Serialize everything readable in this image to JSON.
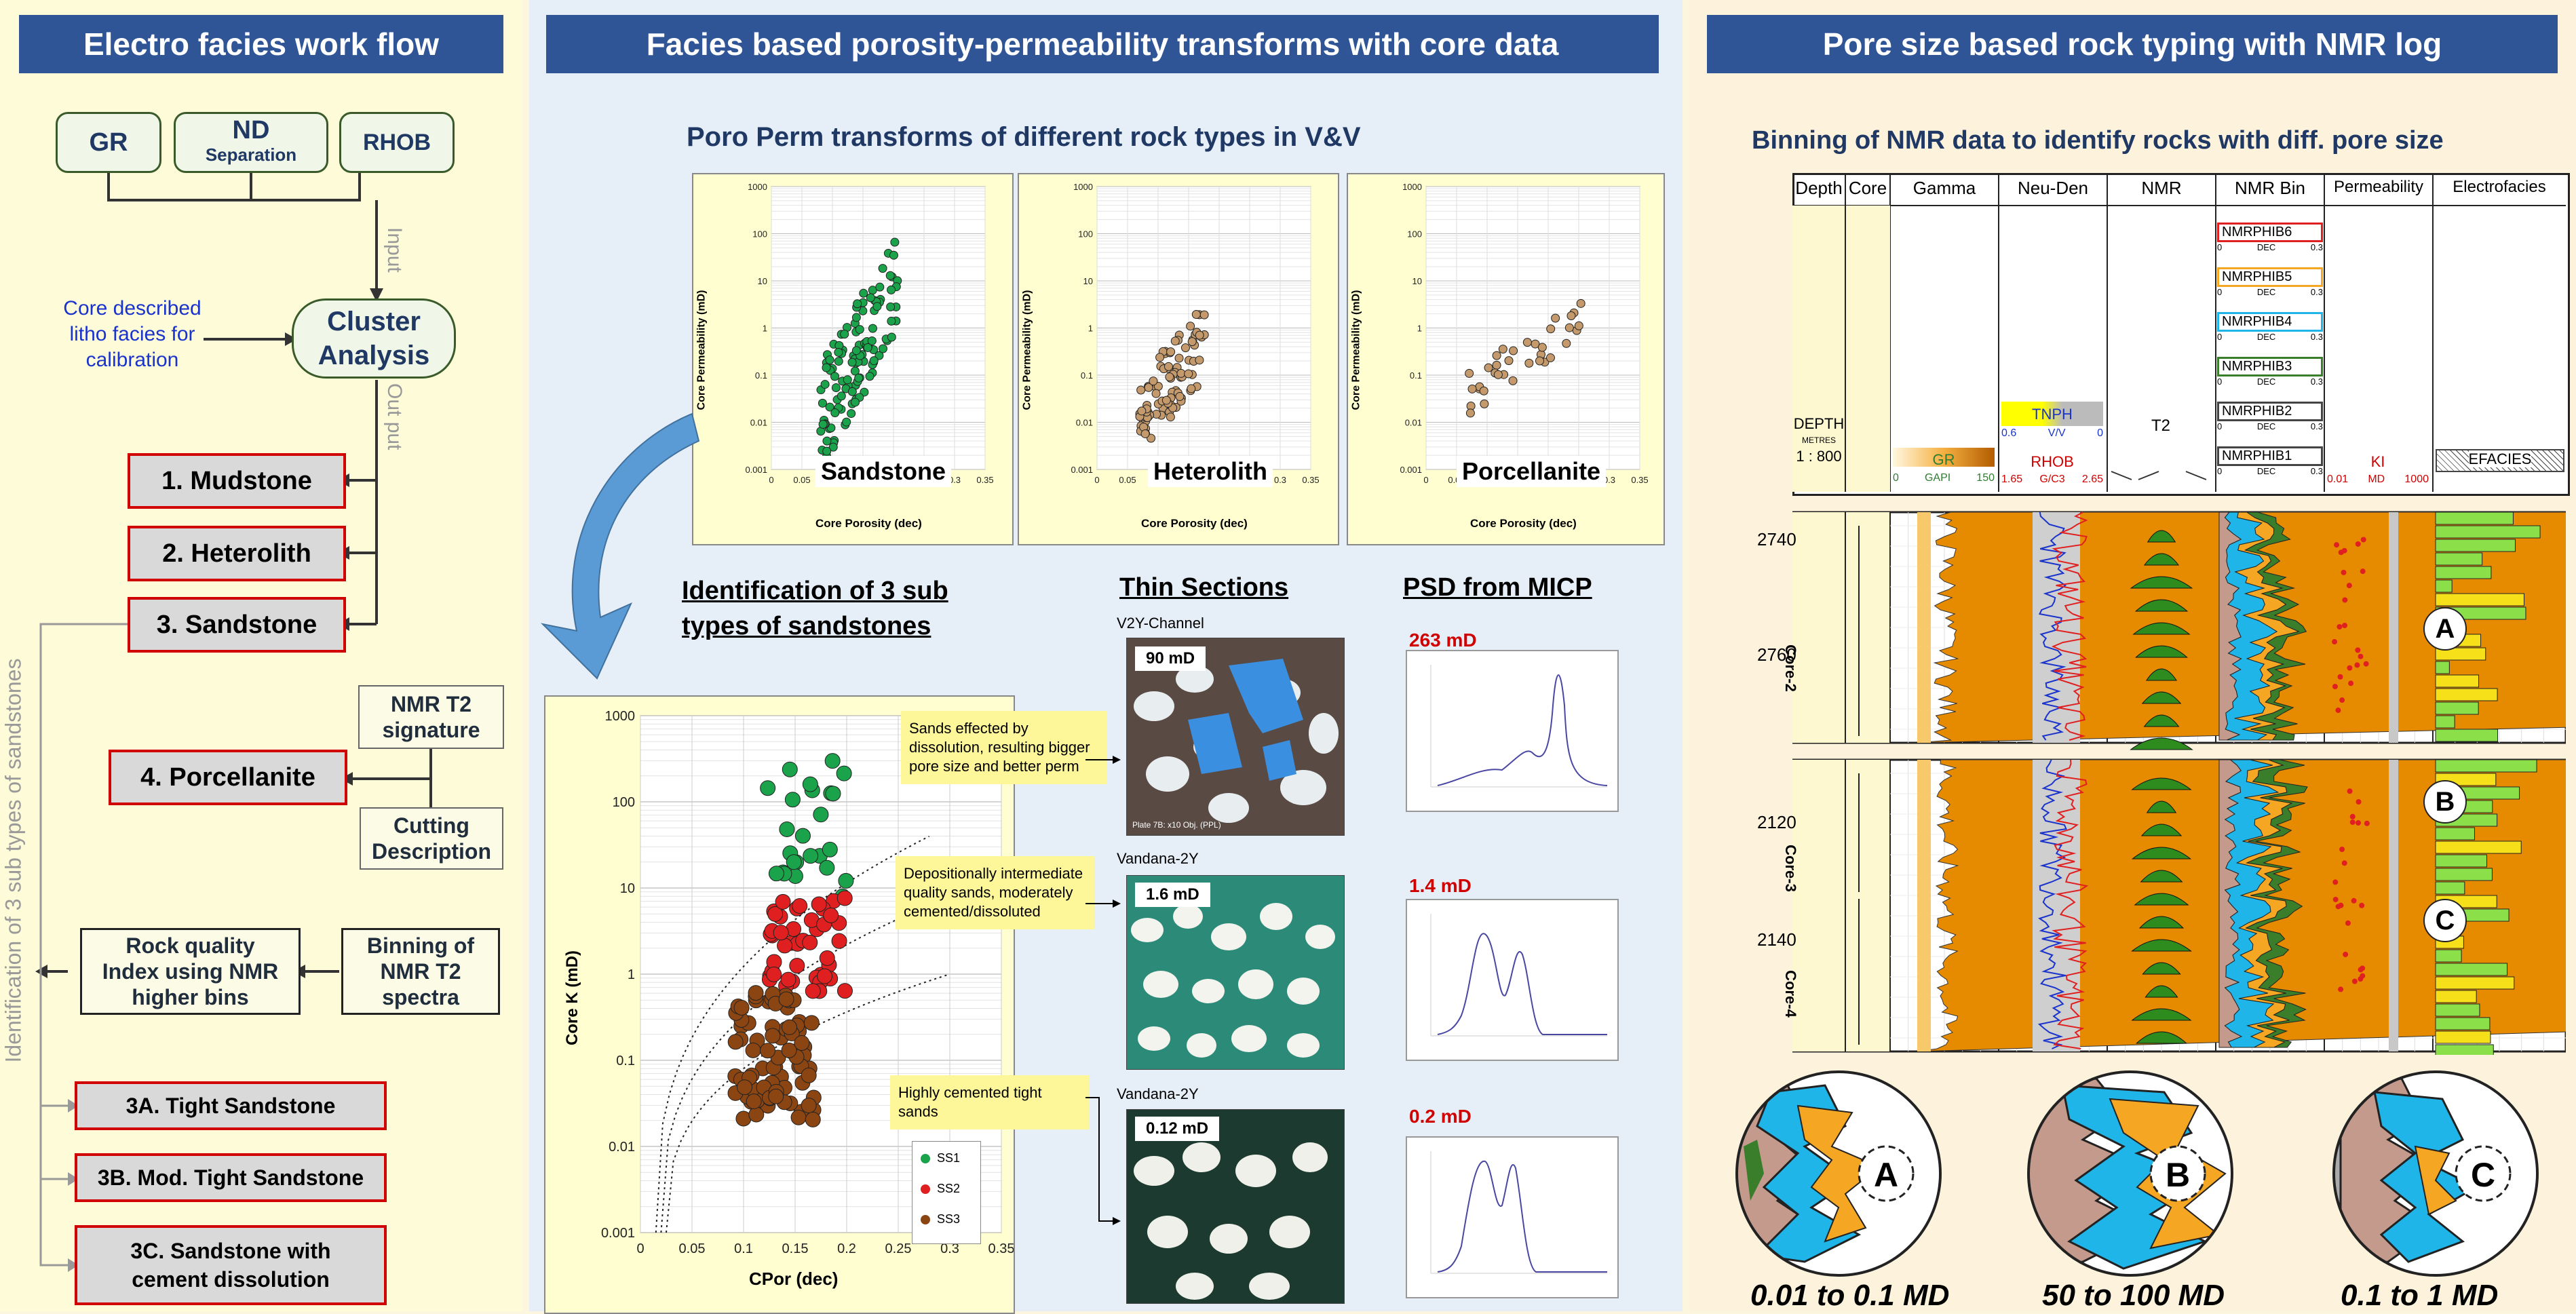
{
  "panel1": {
    "header": "Electro facies work flow",
    "inputs": [
      "GR",
      "ND",
      "RHOB"
    ],
    "nd_sub": "Separation",
    "input_label": "Input",
    "output_label": "Out put",
    "core_note": [
      "Core described",
      "litho facies for",
      "calibration"
    ],
    "cluster": [
      "Cluster",
      "Analysis"
    ],
    "facies": [
      "1. Mudstone",
      "2. Heterolith",
      "3. Sandstone",
      "4. Porcellanite"
    ],
    "nmr_sig": [
      "NMR T2",
      "signature"
    ],
    "cutting": [
      "Cutting",
      "Description"
    ],
    "rock_quality": [
      "Rock quality",
      "Index using NMR",
      "higher bins"
    ],
    "binning": [
      "Binning of",
      "NMR T2",
      "spectra"
    ],
    "vertical_label": "Identification of 3 sub types of sandstones",
    "subtypes": [
      "3A. Tight Sandstone",
      "3B. Mod. Tight Sandstone",
      "3C. Sandstone with",
      "cement dissolution"
    ]
  },
  "panel2": {
    "header": "Facies based porosity-permeability transforms with core data",
    "subtitle": "Poro Perm transforms of different rock types in V&V",
    "small_charts": [
      {
        "label": "Sandstone",
        "ylabel": "Core Permeability (mD)",
        "xlabel": "Core Porosity (dec)"
      },
      {
        "label": "Heterolith",
        "ylabel": "Core Permeability (mD)",
        "xlabel": "Core Porosity (dec)"
      },
      {
        "label": "Porcellanite",
        "ylabel": "Core Permeability (mD)",
        "xlabel": "Core Porosity (dec)"
      }
    ],
    "y_ticks_small": [
      "1000",
      "100",
      "10",
      "1",
      "0.1",
      "0.01",
      "0.001"
    ],
    "x_ticks": [
      "0",
      "0.05",
      "0.1",
      "0.15",
      "0.2",
      "0.25",
      "0.3",
      "0.35"
    ],
    "ident_title": [
      "Identification of 3 sub",
      "types of sandstones"
    ],
    "thin_title": "Thin Sections",
    "psd_title": "PSD from MICP",
    "big_chart": {
      "ylabel": "Core K (mD)",
      "xlabel": "CPor (dec)",
      "legend": [
        "SS1",
        "SS2",
        "SS3"
      ]
    },
    "callouts": [
      "Sands effected by dissolution, resulting bigger pore size and better perm",
      "Depositionally intermediate quality sands, moderately cemented/dissoluted",
      "Highly cemented tight sands"
    ],
    "samples": [
      {
        "well": "V2Y-Channel",
        "perm": "90 mD",
        "psd": "263 mD"
      },
      {
        "well": "Vandana-2Y",
        "perm": "1.6 mD",
        "psd": "1.4 mD"
      },
      {
        "well": "Vandana-2Y",
        "perm": "0.12 mD",
        "psd": "0.2 mD"
      }
    ],
    "plate_note": "Plate 7B: x10 Obj. (PPL)"
  },
  "panel3": {
    "header": "Pore size based rock typing with NMR log",
    "subtitle": "Binning of NMR data to identify rocks with diff. pore size",
    "tracks": [
      "Depth",
      "Core",
      "Gamma",
      "Neu-Den",
      "NMR",
      "NMR Bin",
      "Permeability",
      "Electrofacies"
    ],
    "depth_label": "DEPTH",
    "depth_units": "METRES",
    "scale": "1 : 800",
    "gr_label": "GR",
    "gr_scale": [
      "0",
      "GAPI",
      "150"
    ],
    "tnph_label": "TNPH",
    "tnph_scale": [
      "0.6",
      "V/V",
      "0"
    ],
    "rhob_label": "RHOB",
    "rhob_scale": [
      "1.65",
      "G/C3",
      "2.65"
    ],
    "t2_label": "T2",
    "bins": [
      "NMRPHIB6",
      "NMRPHIB5",
      "NMRPHIB4",
      "NMRPHIB3",
      "NMRPHIB2",
      "NMRPHIB1"
    ],
    "bin_scale": [
      "0",
      "DEC",
      "0.3"
    ],
    "ki_label": "KI",
    "ki_scale": [
      "0.01",
      "MD",
      "1000"
    ],
    "efacies_label": "EFACIES",
    "depths_top": [
      "2740",
      "2760"
    ],
    "depths_bottom": [
      "2120",
      "2140"
    ],
    "cores": [
      "Core-2",
      "Core-3",
      "Core-4"
    ],
    "zones": [
      "A",
      "B",
      "C"
    ],
    "ranges": [
      "0.01 to 0.1 MD",
      "50 to 100 MD",
      "0.1 to 1 MD"
    ]
  }
}
